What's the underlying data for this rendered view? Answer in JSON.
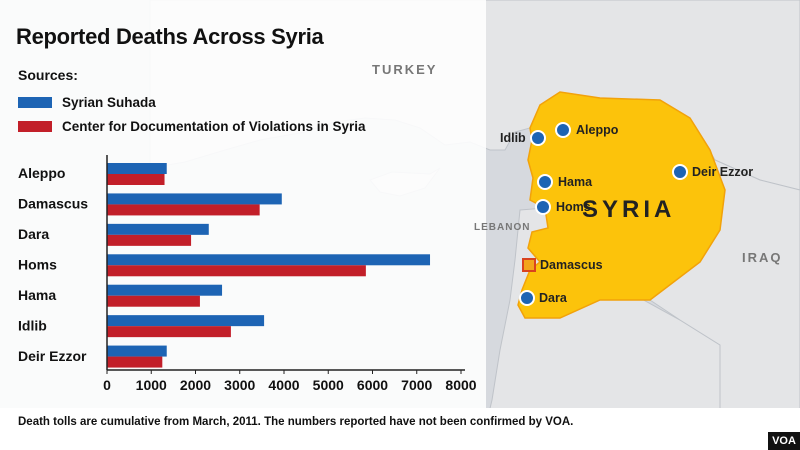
{
  "title": "Reported Deaths Across Syria",
  "sources_label": "Sources:",
  "footnote": "Death tolls are cumulative from March, 2011.  The numbers reported have not been confirmed by VOA.",
  "logo": "VOA",
  "map": {
    "countries": {
      "turkey": "TURKEY",
      "syria": "SYRIA",
      "lebanon": "LEBANON",
      "iraq": "IRAQ"
    },
    "cities": [
      {
        "id": "idlib",
        "name": "Idlib",
        "capital": false
      },
      {
        "id": "aleppo",
        "name": "Aleppo",
        "capital": false
      },
      {
        "id": "hama",
        "name": "Hama",
        "capital": false
      },
      {
        "id": "homs",
        "name": "Homs",
        "capital": false
      },
      {
        "id": "deirezzor",
        "name": "Deir Ezzor",
        "capital": false
      },
      {
        "id": "damascus",
        "name": "Damascus",
        "capital": true
      },
      {
        "id": "dara",
        "name": "Dara",
        "capital": false
      }
    ],
    "colors": {
      "syria_fill": "#fcc30b",
      "syria_outline": "#f2a20a",
      "neighbor_fill": "#e4e5e7",
      "sea_fill": "#d6d9de",
      "city_dot": "#1d64b4"
    }
  },
  "chart_data": {
    "type": "bar",
    "orientation": "horizontal",
    "categories": [
      "Aleppo",
      "Damascus",
      "Dara",
      "Homs",
      "Hama",
      "Idlib",
      "Deir Ezzor"
    ],
    "series": [
      {
        "name": "Syrian Suhada",
        "color": "#1d64b4",
        "values": [
          1350,
          3950,
          2300,
          7300,
          2600,
          3550,
          1350
        ]
      },
      {
        "name": "Center for Documentation of Violations in Syria",
        "color": "#c21f29",
        "values": [
          1300,
          3450,
          1900,
          5850,
          2100,
          2800,
          1250
        ]
      }
    ],
    "xlim": [
      0,
      8000
    ],
    "xticks": [
      0,
      1000,
      2000,
      3000,
      4000,
      5000,
      6000,
      7000,
      8000
    ],
    "grid": false,
    "legend_position": "top-left"
  }
}
